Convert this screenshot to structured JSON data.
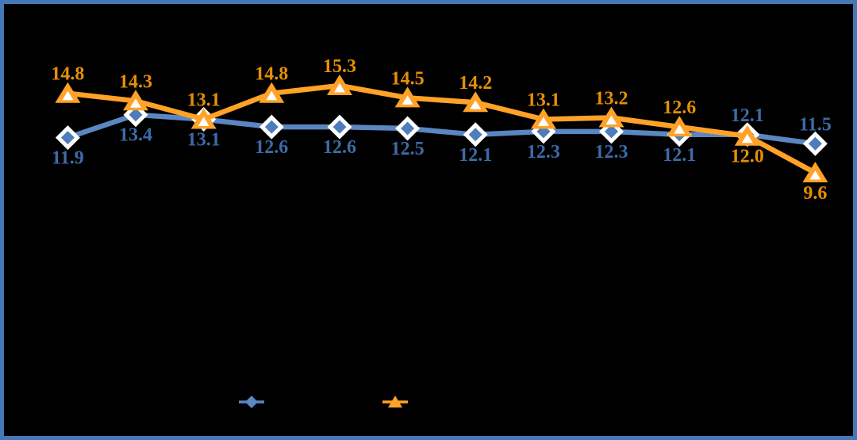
{
  "colors": {
    "background": "#000000",
    "border": "#4579b5",
    "blue_line": "#5a86c2",
    "blue_marker": "#4d7dbb",
    "blue_label": "#3d6ba8",
    "orange_line": "#ffa227",
    "orange_label": "#e78f04",
    "marker_ring": "#ffffff"
  },
  "chart_data": {
    "type": "line",
    "point_count": 12,
    "grid": false,
    "axes_visible": false,
    "ylim": [
      9,
      16
    ],
    "series": [
      {
        "id": "blue-diamond",
        "marker": "diamond",
        "line_color": "#5a86c2",
        "marker_fill": "#4d7dbb",
        "marker_ring": "#ffffff",
        "label_color": "#3d6ba8",
        "values": [
          11.9,
          13.4,
          13.1,
          12.6,
          12.6,
          12.5,
          12.1,
          12.3,
          12.3,
          12.1,
          12.1,
          11.5
        ],
        "label_side": [
          "below",
          "below",
          "below",
          "below",
          "below",
          "below",
          "below",
          "below",
          "below",
          "below",
          "above",
          "above"
        ]
      },
      {
        "id": "orange-triangle",
        "marker": "triangle",
        "line_color": "#ffa227",
        "marker_fill": "#ffa227",
        "marker_inner": "#ffffff",
        "label_color": "#e78f04",
        "values": [
          14.8,
          14.3,
          13.1,
          14.8,
          15.3,
          14.5,
          14.2,
          13.1,
          13.2,
          12.6,
          12.0,
          9.6
        ],
        "label_side": [
          "above",
          "above",
          "above",
          "above",
          "above",
          "above",
          "above",
          "above",
          "above",
          "above",
          "below",
          "below"
        ]
      }
    ],
    "legend": {
      "position": "bottom-center",
      "items": [
        {
          "marker": "diamond",
          "color": "#5a86c2",
          "label": ""
        },
        {
          "marker": "triangle",
          "color": "#ffa227",
          "label": ""
        }
      ]
    }
  }
}
